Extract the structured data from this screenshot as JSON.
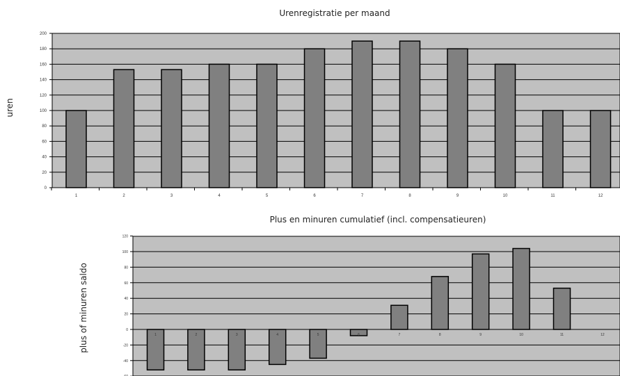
{
  "chart_data": [
    {
      "type": "bar",
      "title": "Urenregistratie per maand",
      "xlabel": "",
      "ylabel": "uren",
      "categories": [
        "1",
        "2",
        "3",
        "4",
        "5",
        "6",
        "7",
        "8",
        "9",
        "10",
        "11",
        "12"
      ],
      "values": [
        100,
        153,
        153,
        160,
        160,
        180,
        190,
        190,
        180,
        160,
        100,
        100
      ],
      "yticks": [
        0,
        20,
        40,
        60,
        80,
        100,
        120,
        140,
        160,
        180,
        200
      ],
      "ylim": [
        0,
        200
      ],
      "grid": true,
      "colors": {
        "bar": "#808080",
        "plot_bg": "#c0c0c0",
        "grid": "#000000"
      }
    },
    {
      "type": "bar",
      "title": "Plus en minuren cumulatief (incl. compensatieuren)",
      "xlabel": "",
      "ylabel": "plus of minuren saldo",
      "categories": [
        "1",
        "2",
        "3",
        "4",
        "5",
        "6",
        "7",
        "8",
        "9",
        "10",
        "11",
        "12"
      ],
      "values": [
        -52,
        -52,
        -52,
        -45,
        -37,
        -8,
        31,
        68,
        97,
        104,
        53,
        0
      ],
      "yticks": [
        -60,
        -40,
        -20,
        0,
        20,
        40,
        60,
        80,
        100,
        120
      ],
      "ylim": [
        -60,
        120
      ],
      "grid": true,
      "colors": {
        "bar": "#808080",
        "plot_bg": "#c0c0c0",
        "grid": "#000000"
      }
    }
  ]
}
